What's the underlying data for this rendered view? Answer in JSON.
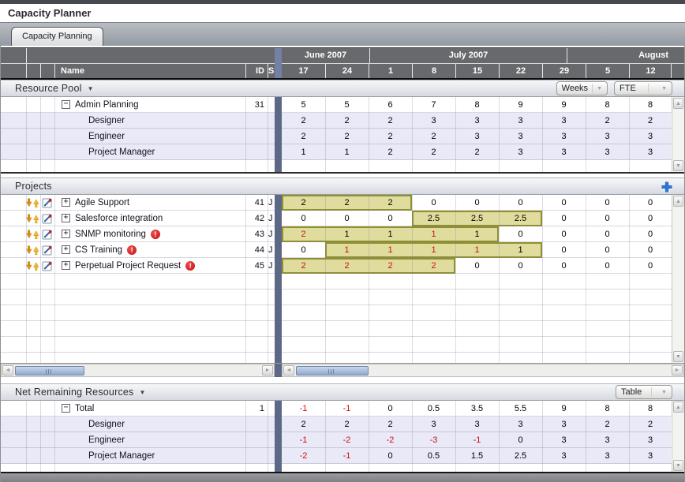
{
  "app": {
    "title": "Capacity Planner",
    "tab": "Capacity Planning"
  },
  "columns": {
    "name": "Name",
    "id": "ID",
    "start": "S",
    "months": [
      {
        "label": "June 2007"
      },
      {
        "label": "July 2007"
      },
      {
        "label": "August"
      }
    ],
    "weeks": [
      "17",
      "24",
      "1",
      "8",
      "15",
      "22",
      "29",
      "5",
      "12"
    ]
  },
  "icons": {
    "section_caret": "▼",
    "dropdown_caret": "▼",
    "up": "▲",
    "down": "▼",
    "left": "◄",
    "right": "►"
  },
  "resource_pool": {
    "title": "Resource Pool",
    "dropdowns": [
      "Weeks",
      "FTE"
    ],
    "rows": [
      {
        "name": "Admin Planning",
        "id": "31",
        "level": 0,
        "toggle": "collapse",
        "values": [
          "5",
          "5",
          "6",
          "7",
          "8",
          "9",
          "9",
          "8",
          "8"
        ],
        "red": []
      },
      {
        "name": "Designer",
        "level": 1,
        "values": [
          "2",
          "2",
          "2",
          "3",
          "3",
          "3",
          "3",
          "2",
          "2"
        ],
        "red": []
      },
      {
        "name": "Engineer",
        "level": 1,
        "values": [
          "2",
          "2",
          "2",
          "2",
          "3",
          "3",
          "3",
          "3",
          "3"
        ],
        "red": []
      },
      {
        "name": "Project Manager",
        "level": 1,
        "values": [
          "1",
          "1",
          "2",
          "2",
          "2",
          "3",
          "3",
          "3",
          "3"
        ],
        "red": []
      }
    ]
  },
  "projects": {
    "title": "Projects",
    "row_icons": [
      "priority-arrows-icon",
      "edit-icon"
    ],
    "rows": [
      {
        "name": "Agile Support",
        "id": "41",
        "start": "J",
        "level": 0,
        "toggle": "expand",
        "error": false,
        "values": [
          "2",
          "2",
          "2",
          "0",
          "0",
          "0",
          "0",
          "0",
          "0"
        ],
        "red": [],
        "highlight": [
          0,
          2
        ]
      },
      {
        "name": "Salesforce integration",
        "id": "42",
        "start": "J",
        "level": 0,
        "toggle": "expand",
        "error": false,
        "values": [
          "0",
          "0",
          "0",
          "2.5",
          "2.5",
          "2.5",
          "0",
          "0",
          "0"
        ],
        "red": [],
        "highlight": [
          3,
          5
        ]
      },
      {
        "name": "SNMP monitoring",
        "id": "43",
        "start": "J",
        "level": 0,
        "toggle": "expand",
        "error": true,
        "values": [
          "2",
          "1",
          "1",
          "1",
          "1",
          "0",
          "0",
          "0",
          "0"
        ],
        "red": [
          0,
          3
        ],
        "highlight": [
          0,
          4
        ]
      },
      {
        "name": "CS Training",
        "id": "44",
        "start": "J",
        "level": 0,
        "toggle": "expand",
        "error": true,
        "values": [
          "0",
          "1",
          "1",
          "1",
          "1",
          "1",
          "0",
          "0",
          "0"
        ],
        "red": [
          1,
          2,
          3,
          4
        ],
        "highlight": [
          1,
          5
        ]
      },
      {
        "name": "Perpetual Project Request",
        "id": "45",
        "start": "J",
        "level": 0,
        "toggle": "expand",
        "error": true,
        "values": [
          "2",
          "2",
          "2",
          "2",
          "0",
          "0",
          "0",
          "0",
          "0"
        ],
        "red": [
          0,
          1,
          2,
          3
        ],
        "highlight": [
          0,
          3
        ]
      }
    ]
  },
  "net_remaining": {
    "title": "Net Remaining Resources",
    "dropdown": "Table",
    "rows": [
      {
        "name": "Total",
        "id": "1",
        "level": 0,
        "toggle": "collapse",
        "values": [
          "-1",
          "-1",
          "0",
          "0.5",
          "3.5",
          "5.5",
          "9",
          "8",
          "8"
        ],
        "red": [
          0,
          1
        ]
      },
      {
        "name": "Designer",
        "level": 1,
        "values": [
          "2",
          "2",
          "2",
          "3",
          "3",
          "3",
          "3",
          "2",
          "2"
        ],
        "red": []
      },
      {
        "name": "Engineer",
        "level": 1,
        "values": [
          "-1",
          "-2",
          "-2",
          "-3",
          "-1",
          "0",
          "3",
          "3",
          "3"
        ],
        "red": [
          0,
          1,
          2,
          3,
          4
        ]
      },
      {
        "name": "Project Manager",
        "level": 1,
        "values": [
          "-2",
          "-1",
          "0",
          "0.5",
          "1.5",
          "2.5",
          "3",
          "3",
          "3"
        ],
        "red": [
          0,
          1
        ]
      }
    ]
  },
  "colors": {
    "highlight_fill": "#dfdc9d",
    "highlight_border": "#8f9030",
    "negative_text": "#cc1111",
    "alt_row": "#e9e9f7",
    "header_bg": "#67696d",
    "splitter": "#5d6886",
    "scroll_thumb": "#9db4d6",
    "add_icon_blue": "#2f74d0",
    "priority_gold": "#f0a11c"
  }
}
